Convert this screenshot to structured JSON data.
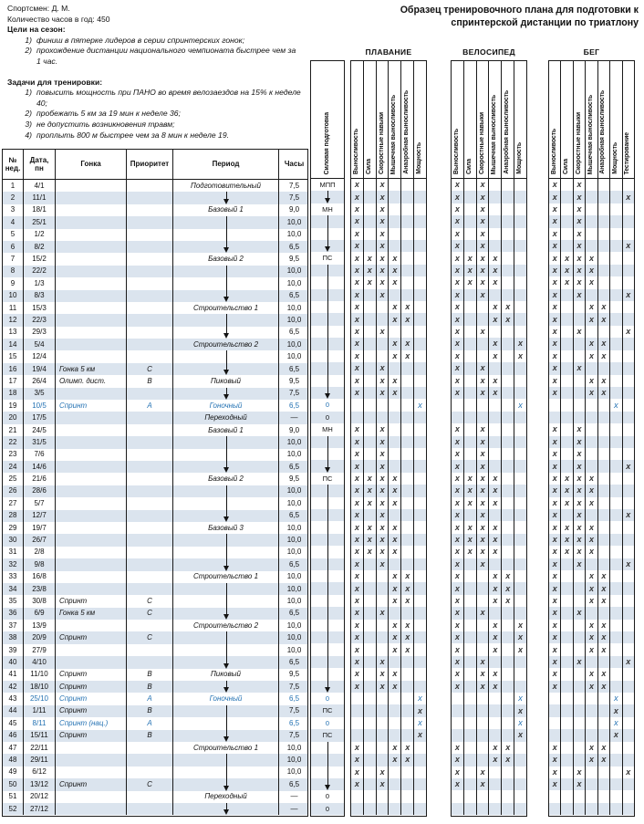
{
  "header": {
    "athlete_label": "Спортсмен:",
    "athlete": "Д. М.",
    "hours_label": "Количество часов в год:",
    "hours_value": "450",
    "goals_label": "Цели на сезон:",
    "goals": [
      "финиш в пятерке лидеров в серии спринтерских гонок;",
      "прохождение дистанции национального чемпионата быстрее чем за 1 час."
    ],
    "tasks_label": "Задачи для тренировки:",
    "tasks": [
      "повысить мощность при ПАНО во время велозаездов на 15% к неделе 40;",
      "пробежать 5 км за 19 мин к неделе 36;",
      "не допустить возникновения травм;",
      "проплыть 800 м быстрее чем за 8 мин к неделе 19."
    ],
    "title": "Образец тренировочного плана для подготовки к спринтерской дистанции по триатлону"
  },
  "table": {
    "columns": {
      "week": "№\nнед.",
      "date": "Дата,\nпн",
      "race": "Гонка",
      "priority": "Приоритет",
      "period": "Период",
      "hours": "Часы",
      "strength": "Силовая подготовка"
    },
    "groups": [
      {
        "label": "ПЛАВАНИЕ",
        "cols": [
          "Выносливость",
          "Сила",
          "Скоростные навыки",
          "Мышечная выносливость",
          "Анаэробная выносливость",
          "Мощность"
        ]
      },
      {
        "label": "ВЕЛОСИПЕД",
        "cols": [
          "Выносливость",
          "Сила",
          "Скоростные навыки",
          "Мышечная выносливость",
          "Анаэробная выносливость",
          "Мощность"
        ]
      },
      {
        "label": "БЕГ",
        "cols": [
          "Выносливость",
          "Сила",
          "Скоростные навыки",
          "Мышечная выносливость",
          "Анаэробная выносливость",
          "Мощность",
          "Тестирование"
        ]
      }
    ],
    "mark_glyph": "х",
    "rows": [
      [
        1,
        "4/1",
        "",
        "",
        "Подготовительный",
        "7,5",
        "МПП",
        [
          1,
          3
        ],
        [
          1,
          3
        ],
        [
          1,
          3
        ],
        0
      ],
      [
        2,
        "11/1",
        "",
        "",
        "v",
        "7,5",
        "v",
        [
          1,
          3
        ],
        [
          1,
          3
        ],
        [
          1,
          3,
          7
        ],
        0
      ],
      [
        3,
        "18/1",
        "",
        "",
        "Базовый 1",
        "9,0",
        "МН",
        [
          1,
          3
        ],
        [
          1,
          3
        ],
        [
          1,
          3
        ],
        0
      ],
      [
        4,
        "25/1",
        "",
        "",
        "|",
        "10,0",
        "|",
        [
          1,
          3
        ],
        [
          1,
          3
        ],
        [
          1,
          3
        ],
        0
      ],
      [
        5,
        "1/2",
        "",
        "",
        "|",
        "10,0",
        "|",
        [
          1,
          3
        ],
        [
          1,
          3
        ],
        [
          1,
          3
        ],
        0
      ],
      [
        6,
        "8/2",
        "",
        "",
        "v",
        "6,5",
        "v",
        [
          1,
          3
        ],
        [
          1,
          3
        ],
        [
          1,
          3,
          7
        ],
        0
      ],
      [
        7,
        "15/2",
        "",
        "",
        "Базовый 2",
        "9,5",
        "ПС",
        [
          1,
          2,
          3,
          4
        ],
        [
          1,
          2,
          3,
          4
        ],
        [
          1,
          2,
          3,
          4
        ],
        0
      ],
      [
        8,
        "22/2",
        "",
        "",
        "|",
        "10,0",
        "|",
        [
          1,
          2,
          3,
          4
        ],
        [
          1,
          2,
          3,
          4
        ],
        [
          1,
          2,
          3,
          4
        ],
        0
      ],
      [
        9,
        "1/3",
        "",
        "",
        "|",
        "10,0",
        "|",
        [
          1,
          2,
          3,
          4
        ],
        [
          1,
          2,
          3,
          4
        ],
        [
          1,
          2,
          3,
          4
        ],
        0
      ],
      [
        10,
        "8/3",
        "",
        "",
        "v",
        "6,5",
        "|",
        [
          1,
          3
        ],
        [
          1,
          3
        ],
        [
          1,
          3,
          7
        ],
        0
      ],
      [
        11,
        "15/3",
        "",
        "",
        "Строительство 1",
        "10,0",
        "|",
        [
          1,
          4,
          5
        ],
        [
          1,
          4,
          5
        ],
        [
          1,
          4,
          5
        ],
        0
      ],
      [
        12,
        "22/3",
        "",
        "",
        "|",
        "10,0",
        "|",
        [
          1,
          4,
          5
        ],
        [
          1,
          4,
          5
        ],
        [
          1,
          4,
          5
        ],
        0
      ],
      [
        13,
        "29/3",
        "",
        "",
        "v",
        "6,5",
        "|",
        [
          1,
          3
        ],
        [
          1,
          3
        ],
        [
          1,
          3,
          7
        ],
        0
      ],
      [
        14,
        "5/4",
        "",
        "",
        "Строительство 2",
        "10,0",
        "|",
        [
          1,
          4,
          5
        ],
        [
          1,
          4,
          6
        ],
        [
          1,
          4,
          5
        ],
        0
      ],
      [
        15,
        "12/4",
        "",
        "",
        "|",
        "10,0",
        "|",
        [
          1,
          4,
          5
        ],
        [
          1,
          4,
          6
        ],
        [
          1,
          4,
          5
        ],
        0
      ],
      [
        16,
        "19/4",
        "Гонка 5 км",
        "C",
        "v",
        "6,5",
        "|",
        [
          1,
          3
        ],
        [
          1,
          3
        ],
        [
          1,
          3
        ],
        0
      ],
      [
        17,
        "26/4",
        "Олимп. дист.",
        "B",
        "Пиковый",
        "9,5",
        "|",
        [
          1,
          3,
          4
        ],
        [
          1,
          3,
          4
        ],
        [
          1,
          4,
          5
        ],
        0
      ],
      [
        18,
        "3/5",
        "",
        "",
        "v",
        "7,5",
        "v",
        [
          1,
          3,
          4
        ],
        [
          1,
          3,
          4
        ],
        [
          1,
          4,
          5
        ],
        0
      ],
      [
        19,
        "10/5",
        "Спринт",
        "A",
        "Гоночный",
        "6,5",
        "0",
        [
          6
        ],
        [
          6
        ],
        [
          6
        ],
        1
      ],
      [
        20,
        "17/5",
        "",
        "",
        "Переходный",
        "—",
        "0",
        [],
        [],
        [],
        0
      ],
      [
        21,
        "24/5",
        "",
        "",
        "Базовый 1",
        "9,0",
        "МН",
        [
          1,
          3
        ],
        [
          1,
          3
        ],
        [
          1,
          3
        ],
        0
      ],
      [
        22,
        "31/5",
        "",
        "",
        "|",
        "10,0",
        "|",
        [
          1,
          3
        ],
        [
          1,
          3
        ],
        [
          1,
          3
        ],
        0
      ],
      [
        23,
        "7/6",
        "",
        "",
        "|",
        "10,0",
        "|",
        [
          1,
          3
        ],
        [
          1,
          3
        ],
        [
          1,
          3
        ],
        0
      ],
      [
        24,
        "14/6",
        "",
        "",
        "v",
        "6,5",
        "v",
        [
          1,
          3
        ],
        [
          1,
          3
        ],
        [
          1,
          3,
          7
        ],
        0
      ],
      [
        25,
        "21/6",
        "",
        "",
        "Базовый 2",
        "9,5",
        "ПС",
        [
          1,
          2,
          3,
          4
        ],
        [
          1,
          2,
          3,
          4
        ],
        [
          1,
          2,
          3,
          4
        ],
        0
      ],
      [
        26,
        "28/6",
        "",
        "",
        "|",
        "10,0",
        "|",
        [
          1,
          2,
          3,
          4
        ],
        [
          1,
          2,
          3,
          4
        ],
        [
          1,
          2,
          3,
          4
        ],
        0
      ],
      [
        27,
        "5/7",
        "",
        "",
        "|",
        "10,0",
        "|",
        [
          1,
          2,
          3,
          4
        ],
        [
          1,
          2,
          3,
          4
        ],
        [
          1,
          2,
          3,
          4
        ],
        0
      ],
      [
        28,
        "12/7",
        "",
        "",
        "v",
        "6,5",
        "|",
        [
          1,
          3
        ],
        [
          1,
          3
        ],
        [
          1,
          3,
          7
        ],
        0
      ],
      [
        29,
        "19/7",
        "",
        "",
        "Базовый 3",
        "10,0",
        "|",
        [
          1,
          2,
          3,
          4
        ],
        [
          1,
          2,
          3,
          4
        ],
        [
          1,
          2,
          3,
          4
        ],
        0
      ],
      [
        30,
        "26/7",
        "",
        "",
        "|",
        "10,0",
        "|",
        [
          1,
          2,
          3,
          4
        ],
        [
          1,
          2,
          3,
          4
        ],
        [
          1,
          2,
          3,
          4
        ],
        0
      ],
      [
        31,
        "2/8",
        "",
        "",
        "|",
        "10,0",
        "|",
        [
          1,
          2,
          3,
          4
        ],
        [
          1,
          2,
          3,
          4
        ],
        [
          1,
          2,
          3,
          4
        ],
        0
      ],
      [
        32,
        "9/8",
        "",
        "",
        "v",
        "6,5",
        "|",
        [
          1,
          3
        ],
        [
          1,
          3
        ],
        [
          1,
          3,
          7
        ],
        0
      ],
      [
        33,
        "16/8",
        "",
        "",
        "Строительство 1",
        "10,0",
        "|",
        [
          1,
          4,
          5
        ],
        [
          1,
          4,
          5
        ],
        [
          1,
          4,
          5
        ],
        0
      ],
      [
        34,
        "23/8",
        "",
        "",
        "|",
        "10,0",
        "|",
        [
          1,
          4,
          5
        ],
        [
          1,
          4,
          5
        ],
        [
          1,
          4,
          5
        ],
        0
      ],
      [
        35,
        "30/8",
        "Спринт",
        "C",
        "|",
        "10,0",
        "|",
        [
          1,
          4,
          5
        ],
        [
          1,
          4,
          5
        ],
        [
          1,
          4,
          5
        ],
        0
      ],
      [
        36,
        "6/9",
        "Гонка 5 км",
        "C",
        "v",
        "6,5",
        "|",
        [
          1,
          3
        ],
        [
          1,
          3
        ],
        [
          1,
          3
        ],
        0
      ],
      [
        37,
        "13/9",
        "",
        "",
        "Строительство 2",
        "10,0",
        "|",
        [
          1,
          4,
          5
        ],
        [
          1,
          4,
          6
        ],
        [
          1,
          4,
          5
        ],
        0
      ],
      [
        38,
        "20/9",
        "Спринт",
        "C",
        "|",
        "10,0",
        "|",
        [
          1,
          4,
          5
        ],
        [
          1,
          4,
          6
        ],
        [
          1,
          4,
          5
        ],
        0
      ],
      [
        39,
        "27/9",
        "",
        "",
        "|",
        "10,0",
        "|",
        [
          1,
          4,
          5
        ],
        [
          1,
          4,
          6
        ],
        [
          1,
          4,
          5
        ],
        0
      ],
      [
        40,
        "4/10",
        "",
        "",
        "v",
        "6,5",
        "|",
        [
          1,
          3
        ],
        [
          1,
          3
        ],
        [
          1,
          3,
          7
        ],
        0
      ],
      [
        41,
        "11/10",
        "Спринт",
        "B",
        "Пиковый",
        "9,5",
        "|",
        [
          1,
          3,
          4
        ],
        [
          1,
          3,
          4
        ],
        [
          1,
          4,
          5
        ],
        0
      ],
      [
        42,
        "18/10",
        "Спринт",
        "B",
        "v",
        "7,5",
        "v",
        [
          1,
          3,
          4
        ],
        [
          1,
          3,
          4
        ],
        [
          1,
          4,
          5
        ],
        0
      ],
      [
        43,
        "25/10",
        "Спринт",
        "A",
        "Гоночный",
        "6,5",
        "0",
        [
          6
        ],
        [
          6
        ],
        [
          6
        ],
        1
      ],
      [
        44,
        "1/11",
        "Спринт",
        "B",
        "|",
        "7,5",
        "ПС",
        [
          6
        ],
        [
          6
        ],
        [
          6
        ],
        0
      ],
      [
        45,
        "8/11",
        "Спринт (нац.)",
        "A",
        "|",
        "6,5",
        "0",
        [
          6
        ],
        [
          6
        ],
        [
          6
        ],
        1
      ],
      [
        46,
        "15/11",
        "Спринт",
        "B",
        "v",
        "7,5",
        "ПС",
        [
          6
        ],
        [
          6
        ],
        [
          6
        ],
        0
      ],
      [
        47,
        "22/11",
        "",
        "",
        "Строительство 1",
        "10,0",
        "|",
        [
          1,
          4,
          5
        ],
        [
          1,
          4,
          5
        ],
        [
          1,
          4,
          5
        ],
        0
      ],
      [
        48,
        "29/11",
        "",
        "",
        "|",
        "10,0",
        "|",
        [
          1,
          4,
          5
        ],
        [
          1,
          4,
          5
        ],
        [
          1,
          4,
          5
        ],
        0
      ],
      [
        49,
        "6/12",
        "",
        "",
        "|",
        "10,0",
        "|",
        [
          1,
          3
        ],
        [
          1,
          3
        ],
        [
          1,
          3,
          7
        ],
        0
      ],
      [
        50,
        "13/12",
        "Спринт",
        "C",
        "v",
        "6,5",
        "v",
        [
          1,
          3
        ],
        [
          1,
          3
        ],
        [
          1,
          3
        ],
        0
      ],
      [
        51,
        "20/12",
        "",
        "",
        "Переходный",
        "—",
        "0",
        [],
        [],
        [],
        0
      ],
      [
        52,
        "27/12",
        "",
        "",
        "v",
        "—",
        "0",
        [],
        [],
        [],
        0
      ]
    ]
  },
  "colors": {
    "accent_blue": "#2472b3",
    "row_shade": "#dbe4ee",
    "border": "#1a1a1a",
    "mark": "#353535"
  }
}
